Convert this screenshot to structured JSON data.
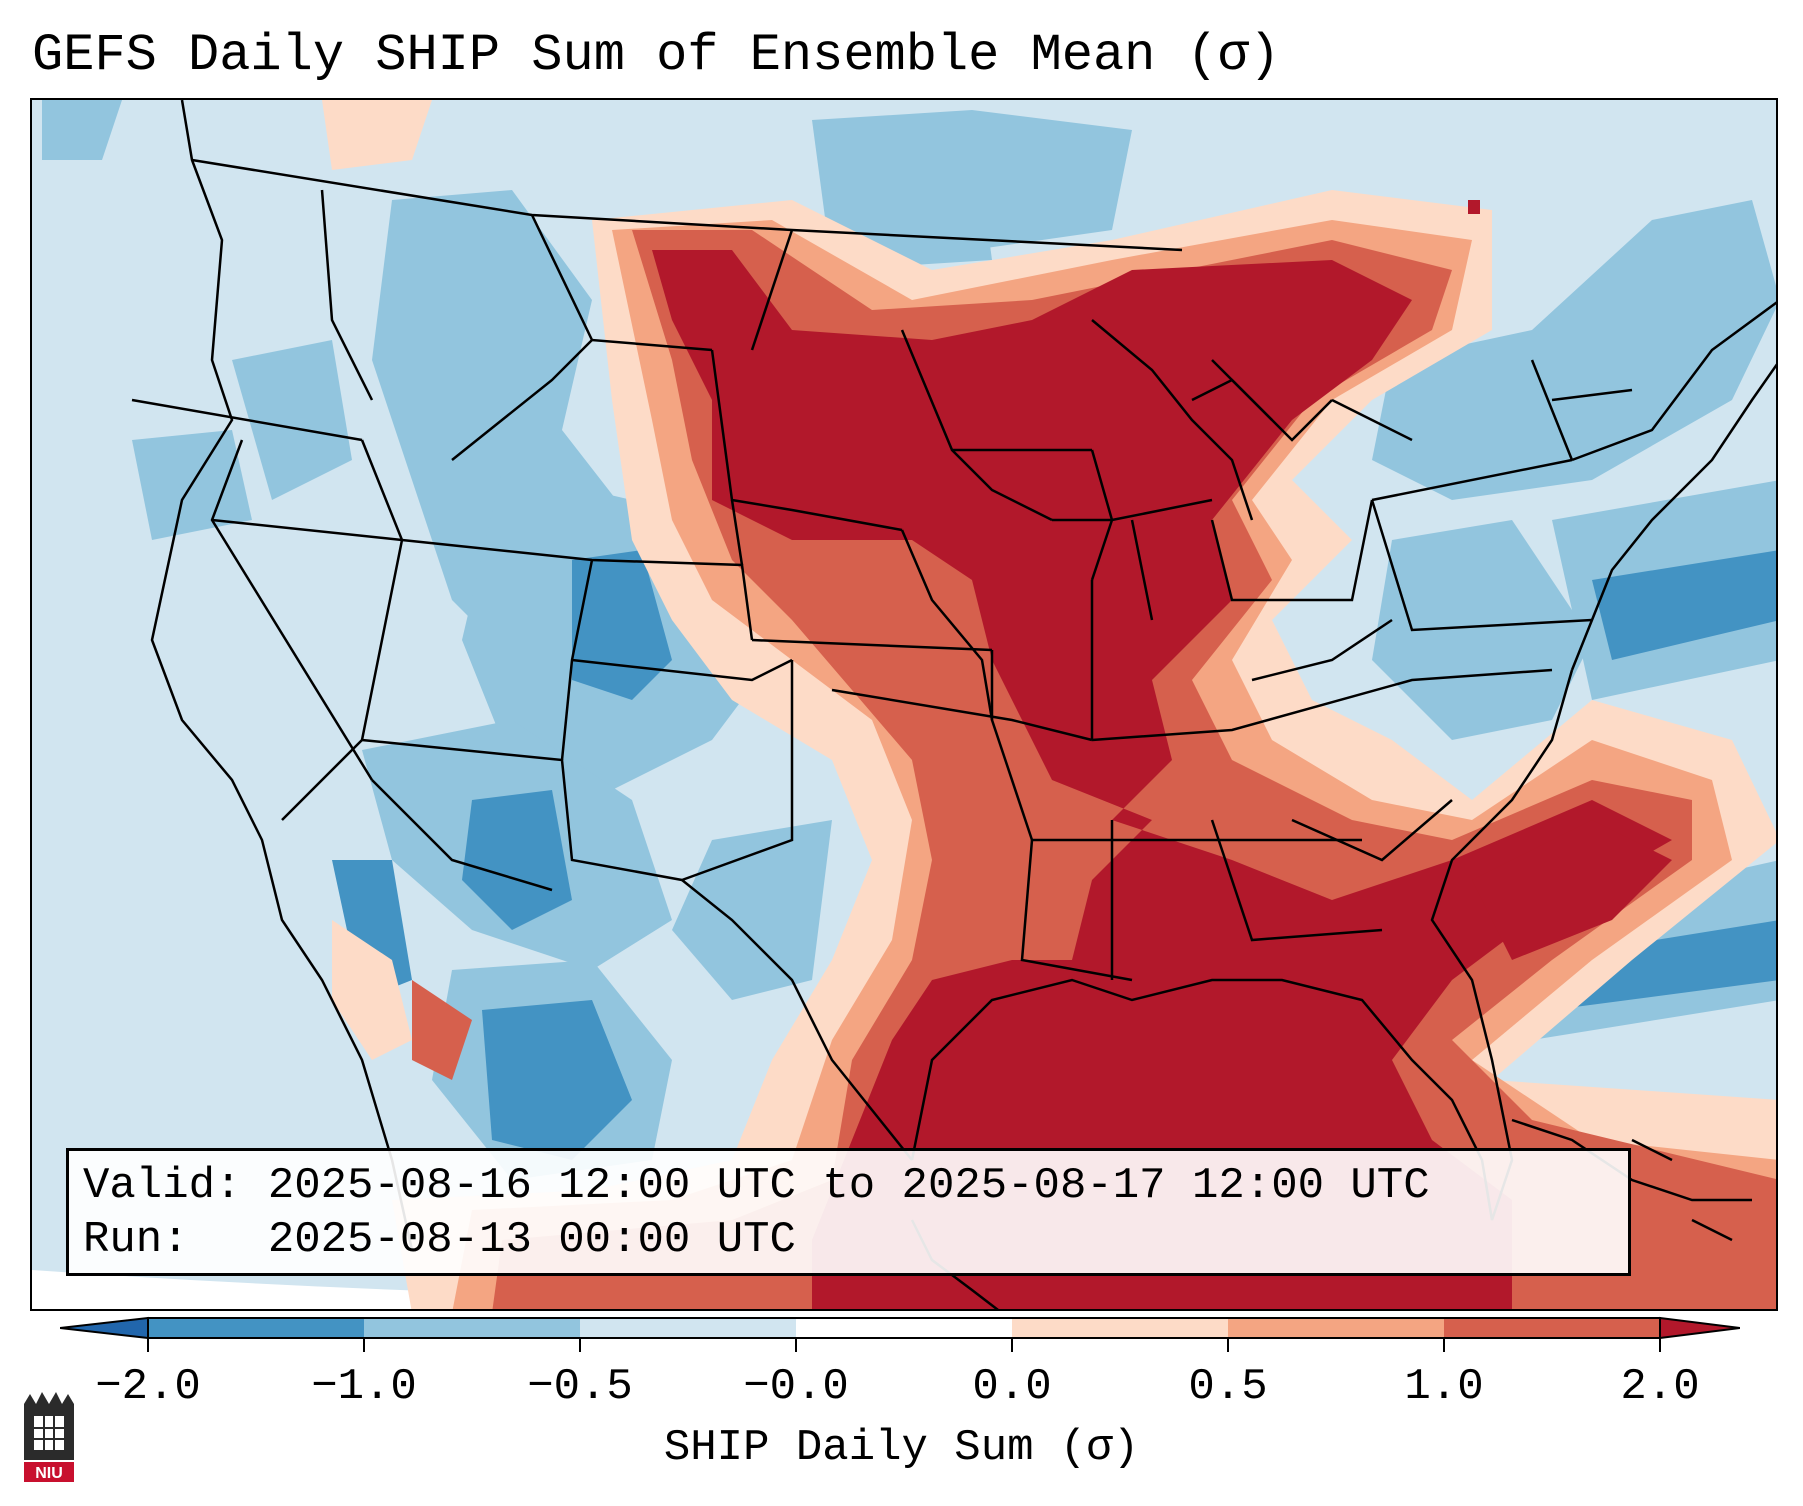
{
  "title": "GEFS Daily SHIP Sum of Ensemble Mean (σ)",
  "info": {
    "valid_line": "Valid: 2025-08-16 12:00 UTC to 2025-08-17 12:00 UTC",
    "run_line": "Run:   2025-08-13 00:00 UTC"
  },
  "colorbar": {
    "label": "SHIP Daily Sum (σ)",
    "ticks": [
      "−2.0",
      "−1.0",
      "−0.5",
      "−0.0",
      "0.0",
      "0.5",
      "1.0",
      "2.0"
    ],
    "colors": [
      "#4393c3",
      "#92c5de",
      "#d1e5f0",
      "#fddbc7",
      "#f4a582",
      "#d6604d",
      "#b2182b"
    ],
    "extend": "both"
  },
  "colors": {
    "below_-2": "#2166ac",
    "-2_to_-1": "#4393c3",
    "-1_to_-0.5": "#92c5de",
    "-0.5_to_0": "#d1e5f0",
    "0_to_0.5": "#fddbc7",
    "0.5_to_1": "#f4a582",
    "1_to_2": "#d6604d",
    "above_2": "#b2182b"
  },
  "logo": {
    "text": "NIU",
    "icon": "niu-logo-icon"
  }
}
